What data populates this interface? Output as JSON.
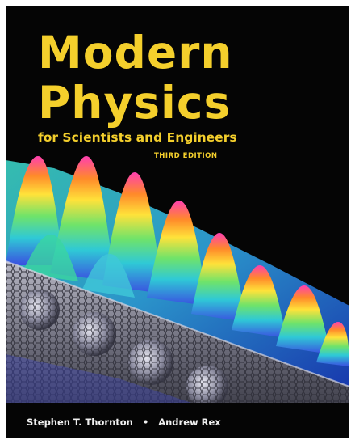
{
  "book": {
    "title_line1": "Modern",
    "title_line2": "Physics",
    "subtitle": "for Scientists and Engineers",
    "edition": "THIRD EDITION",
    "author1": "Stephen T. Thornton",
    "separator": "•",
    "author2": "Andrew Rex"
  },
  "colors": {
    "background": "#050505",
    "title": "#f4cf2c",
    "authors": "#f0f0f0"
  }
}
